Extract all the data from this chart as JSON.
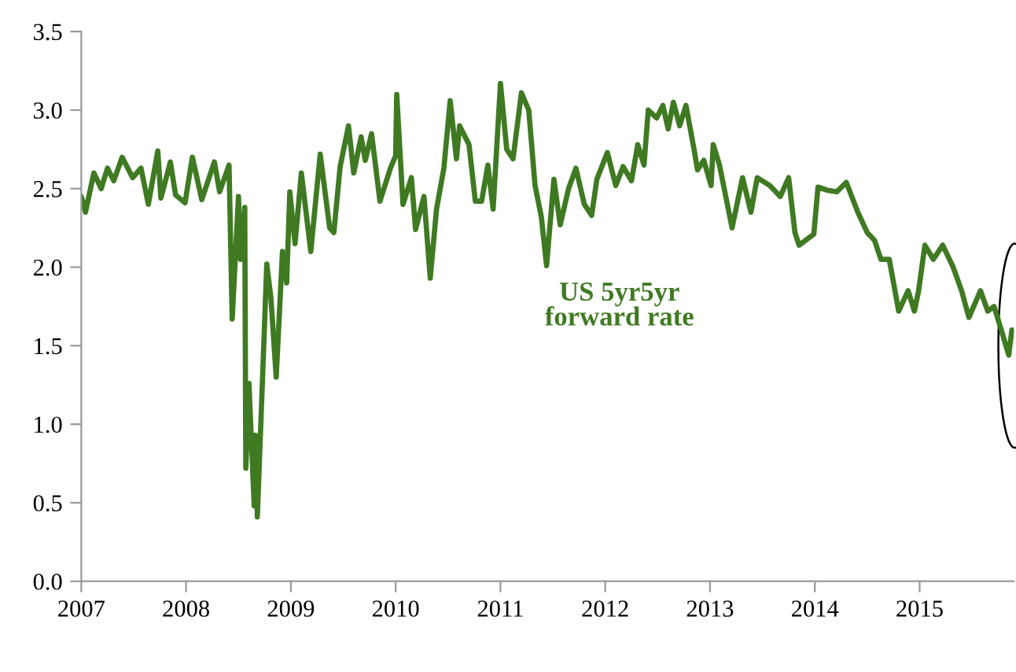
{
  "chart_data": {
    "type": "line",
    "x": [
      2007.0,
      2007.04,
      2007.12,
      2007.19,
      2007.25,
      2007.31,
      2007.39,
      2007.49,
      2007.57,
      2007.64,
      2007.73,
      2007.76,
      2007.85,
      2007.9,
      2007.99,
      2008.06,
      2008.15,
      2008.27,
      2008.32,
      2008.41,
      2008.44,
      2008.5,
      2008.52,
      2008.56,
      2008.57,
      2008.6,
      2008.65,
      2008.66,
      2008.68,
      2008.72,
      2008.77,
      2008.81,
      2008.86,
      2008.92,
      2008.96,
      2008.99,
      2009.04,
      2009.1,
      2009.19,
      2009.28,
      2009.37,
      2009.41,
      2009.47,
      2009.55,
      2009.6,
      2009.67,
      2009.71,
      2009.77,
      2009.85,
      2009.95,
      2010.0,
      2010.01,
      2010.07,
      2010.15,
      2010.19,
      2010.27,
      2010.33,
      2010.39,
      2010.46,
      2010.52,
      2010.58,
      2010.61,
      2010.7,
      2010.76,
      2010.82,
      2010.88,
      2010.93,
      2011.0,
      2011.06,
      2011.12,
      2011.2,
      2011.27,
      2011.33,
      2011.39,
      2011.44,
      2011.51,
      2011.57,
      2011.65,
      2011.72,
      2011.8,
      2011.87,
      2011.92,
      2012.02,
      2012.1,
      2012.17,
      2012.25,
      2012.31,
      2012.37,
      2012.41,
      2012.49,
      2012.55,
      2012.6,
      2012.65,
      2012.71,
      2012.77,
      2012.85,
      2012.88,
      2012.94,
      2013.01,
      2013.03,
      2013.09,
      2013.21,
      2013.31,
      2013.39,
      2013.45,
      2013.57,
      2013.67,
      2013.75,
      2013.81,
      2013.85,
      2013.99,
      2014.03,
      2014.12,
      2014.21,
      2014.3,
      2014.41,
      2014.5,
      2014.57,
      2014.63,
      2014.71,
      2014.8,
      2014.89,
      2014.95,
      2014.99,
      2015.05,
      2015.13,
      2015.22,
      2015.32,
      2015.4,
      2015.47,
      2015.58,
      2015.65,
      2015.71,
      2015.77,
      2015.85,
      2015.88
    ],
    "series": [
      {
        "name": "US 5yr5yr\nforward rate",
        "color": "#3f7a22",
        "values": [
          2.45,
          2.35,
          2.6,
          2.5,
          2.63,
          2.55,
          2.7,
          2.57,
          2.63,
          2.4,
          2.74,
          2.44,
          2.67,
          2.46,
          2.41,
          2.7,
          2.43,
          2.67,
          2.48,
          2.65,
          1.67,
          2.45,
          2.05,
          2.38,
          0.72,
          1.26,
          0.48,
          0.93,
          0.41,
          1.12,
          2.02,
          1.8,
          1.3,
          2.1,
          1.9,
          2.48,
          2.15,
          2.6,
          2.1,
          2.72,
          2.25,
          2.22,
          2.64,
          2.9,
          2.6,
          2.83,
          2.68,
          2.85,
          2.42,
          2.63,
          2.71,
          3.1,
          2.4,
          2.57,
          2.24,
          2.45,
          1.93,
          2.37,
          2.63,
          3.06,
          2.69,
          2.9,
          2.78,
          2.42,
          2.42,
          2.65,
          2.37,
          3.17,
          2.75,
          2.69,
          3.11,
          3.0,
          2.52,
          2.32,
          2.01,
          2.56,
          2.27,
          2.5,
          2.63,
          2.4,
          2.33,
          2.56,
          2.73,
          2.52,
          2.64,
          2.55,
          2.78,
          2.65,
          3.0,
          2.95,
          3.03,
          2.88,
          3.05,
          2.9,
          3.03,
          2.74,
          2.62,
          2.68,
          2.52,
          2.78,
          2.65,
          2.25,
          2.57,
          2.35,
          2.57,
          2.52,
          2.45,
          2.57,
          2.22,
          2.14,
          2.21,
          2.51,
          2.49,
          2.48,
          2.54,
          2.35,
          2.22,
          2.17,
          2.05,
          2.05,
          1.72,
          1.85,
          1.72,
          1.85,
          2.14,
          2.05,
          2.14,
          2.0,
          1.85,
          1.68,
          1.85,
          1.72,
          1.75,
          1.62,
          1.44,
          1.6
        ]
      }
    ],
    "xlim": [
      2007,
      2015.9
    ],
    "xticks": [
      2007,
      2008,
      2009,
      2010,
      2011,
      2012,
      2013,
      2014,
      2015
    ],
    "ylim": [
      0,
      3.5
    ],
    "yticks": [
      {
        "value": 0,
        "label": "0.0"
      },
      {
        "value": 0.5,
        "label": "0.5"
      },
      {
        "value": 1,
        "label": "1.0"
      },
      {
        "value": 1.5,
        "label": "1.5"
      },
      {
        "value": 2,
        "label": "2.0"
      },
      {
        "value": 2.5,
        "label": "2.5"
      },
      {
        "value": 3,
        "label": "3.0"
      },
      {
        "value": 3.5,
        "label": "3.5"
      }
    ],
    "grid": false,
    "legend": false,
    "marker": "none",
    "line_style": "solid"
  }
}
